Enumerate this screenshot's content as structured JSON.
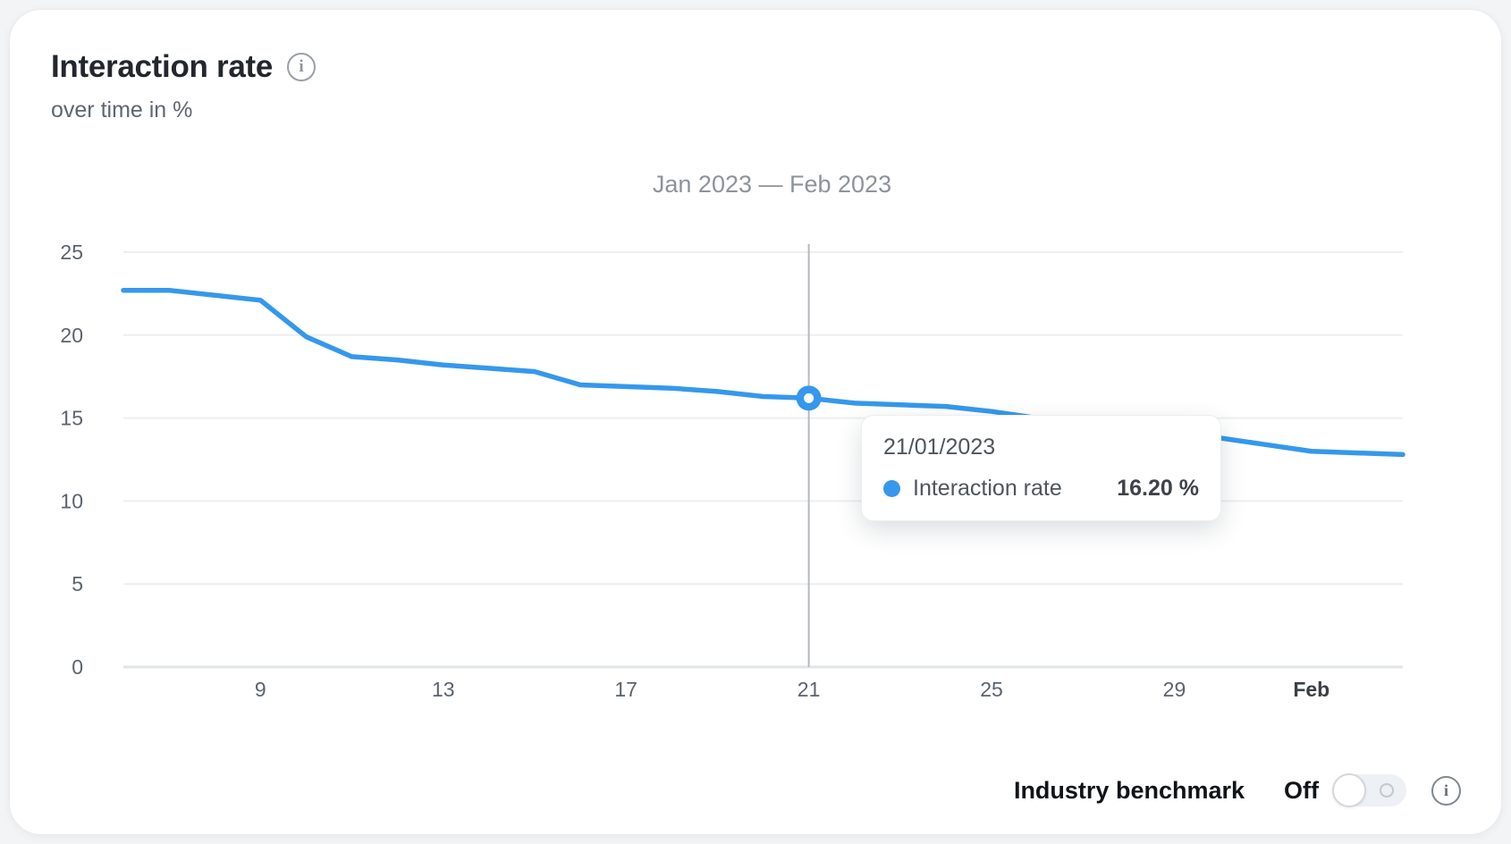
{
  "card": {
    "title": "Interaction rate",
    "subtitle": "over time in %",
    "title_info_icon": "i"
  },
  "chart_data": {
    "type": "line",
    "title": "Jan 2023 — Feb 2023",
    "xlabel": "",
    "ylabel": "Interaction rate in %",
    "ylim": [
      0,
      25
    ],
    "grid": "horizontal",
    "legend_position": "none",
    "categories": [
      "06/01/2023",
      "07/01/2023",
      "08/01/2023",
      "09/01/2023",
      "10/01/2023",
      "11/01/2023",
      "12/01/2023",
      "13/01/2023",
      "14/01/2023",
      "15/01/2023",
      "16/01/2023",
      "17/01/2023",
      "18/01/2023",
      "19/01/2023",
      "20/01/2023",
      "21/01/2023",
      "22/01/2023",
      "23/01/2023",
      "24/01/2023",
      "25/01/2023",
      "26/01/2023",
      "27/01/2023",
      "28/01/2023",
      "29/01/2023",
      "30/01/2023",
      "31/01/2023",
      "01/02/2023",
      "02/02/2023",
      "03/02/2023"
    ],
    "series": [
      {
        "name": "Interaction rate",
        "color": "#3598ec",
        "values": [
          22.7,
          22.7,
          22.4,
          22.1,
          19.9,
          18.7,
          18.5,
          18.2,
          18.0,
          17.8,
          17.0,
          16.9,
          16.8,
          16.6,
          16.3,
          16.2,
          15.9,
          15.8,
          15.7,
          15.4,
          15.0,
          14.6,
          14.2,
          14.0,
          13.8,
          13.4,
          13.0,
          12.9,
          12.8
        ]
      }
    ],
    "y_ticks": [
      25,
      20,
      15,
      10,
      5,
      0
    ],
    "x_ticks": [
      {
        "index": 3,
        "label": "9",
        "bold": false
      },
      {
        "index": 7,
        "label": "13",
        "bold": false
      },
      {
        "index": 11,
        "label": "17",
        "bold": false
      },
      {
        "index": 15,
        "label": "21",
        "bold": false
      },
      {
        "index": 19,
        "label": "25",
        "bold": false
      },
      {
        "index": 23,
        "label": "29",
        "bold": false
      },
      {
        "index": 26,
        "label": "Feb",
        "bold": true
      }
    ],
    "highlight": {
      "index": 15,
      "value": 16.2
    }
  },
  "tooltip": {
    "date": "21/01/2023",
    "series_label": "Interaction rate",
    "value": "16.20 %"
  },
  "benchmark": {
    "label": "Industry benchmark",
    "state": "Off",
    "info_icon": "i"
  },
  "colors": {
    "line": "#3598ec",
    "gridline": "#eceef0",
    "axis_line": "#e2e5e8",
    "crosshair": "#b5b9bd",
    "axis_text": "#5c636c",
    "axis_text_bold": "#3a4046"
  }
}
